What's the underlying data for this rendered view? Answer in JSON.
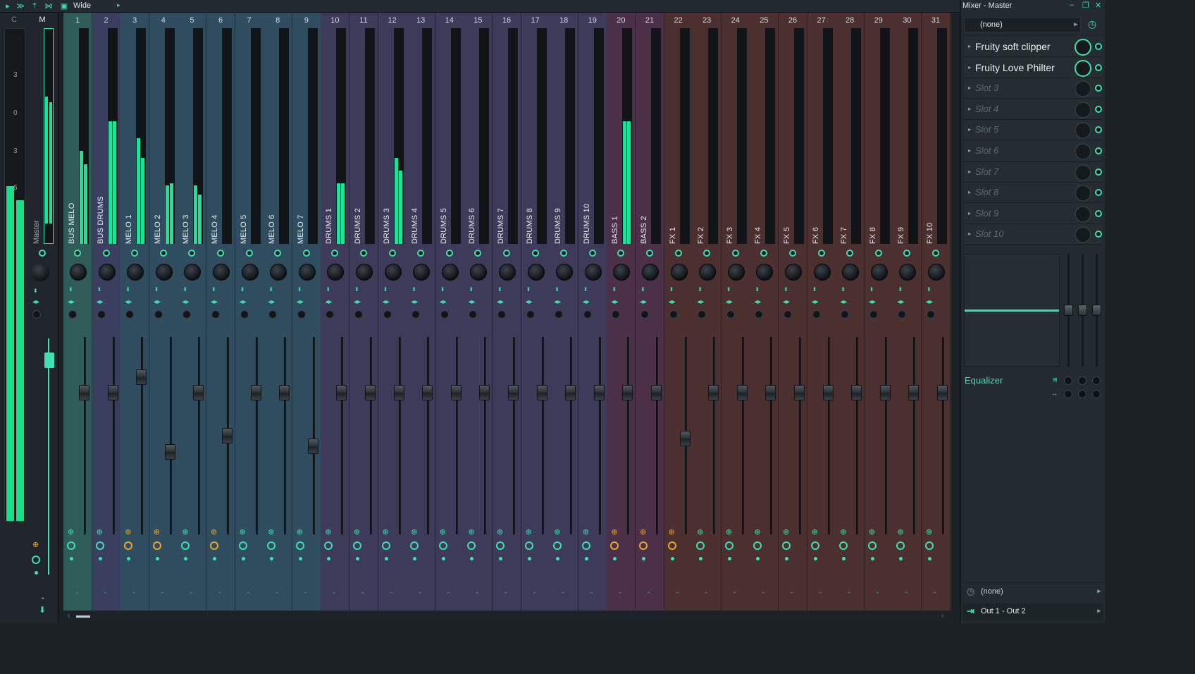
{
  "toolbar": {
    "view_label": "Wide"
  },
  "master": {
    "header_c": "C",
    "header_m": "M",
    "name": "Master",
    "meter_ticks": [
      "3",
      "0",
      "3",
      "6"
    ]
  },
  "channels": [
    {
      "num": "1",
      "name": "BUS MELO",
      "color": "#2f5c58",
      "levelL": 0.43,
      "levelR": 0.37,
      "fader": 0.82,
      "fx": false
    },
    {
      "num": "2",
      "name": "BUS DRUMS",
      "color": "#3a3e5f",
      "levelL": 0.57,
      "levelR": 0.57,
      "fader": 0.82,
      "fx": false
    },
    {
      "num": "3",
      "name": "MELO 1",
      "color": "#2f4d5e",
      "levelL": 0.49,
      "levelR": 0.4,
      "fader": 0.88,
      "fx": true
    },
    {
      "num": "4",
      "name": "MELO 2",
      "color": "#2f4d5e",
      "levelL": 0.27,
      "levelR": 0.28,
      "fader": 0.6,
      "fx": true
    },
    {
      "num": "5",
      "name": "MELO 3",
      "color": "#2f4d5e",
      "levelL": 0.27,
      "levelR": 0.23,
      "fader": 0.82,
      "fx": false
    },
    {
      "num": "6",
      "name": "MELO 4",
      "color": "#2f4d5e",
      "levelL": 0.0,
      "levelR": 0.0,
      "fader": 0.66,
      "fx": true
    },
    {
      "num": "7",
      "name": "MELO 5",
      "color": "#2f4d5e",
      "levelL": 0.0,
      "levelR": 0.0,
      "fader": 0.82,
      "fx": false
    },
    {
      "num": "8",
      "name": "MELO 6",
      "color": "#2f4d5e",
      "levelL": 0.0,
      "levelR": 0.0,
      "fader": 0.82,
      "fx": false
    },
    {
      "num": "9",
      "name": "MELO 7",
      "color": "#2f4d5e",
      "levelL": 0.0,
      "levelR": 0.0,
      "fader": 0.62,
      "fx": false
    },
    {
      "num": "10",
      "name": "DRUMS 1",
      "color": "#3d3a5a",
      "levelL": 0.28,
      "levelR": 0.28,
      "fader": 0.82,
      "fx": false
    },
    {
      "num": "11",
      "name": "DRUMS 2",
      "color": "#3d3a5a",
      "levelL": 0.0,
      "levelR": 0.0,
      "fader": 0.82,
      "fx": false
    },
    {
      "num": "12",
      "name": "DRUMS 3",
      "color": "#3d3a5a",
      "levelL": 0.4,
      "levelR": 0.34,
      "fader": 0.82,
      "fx": false
    },
    {
      "num": "13",
      "name": "DRUMS 4",
      "color": "#3d3a5a",
      "levelL": 0.0,
      "levelR": 0.0,
      "fader": 0.82,
      "fx": false
    },
    {
      "num": "14",
      "name": "DRUMS 5",
      "color": "#3d3a5a",
      "levelL": 0.0,
      "levelR": 0.0,
      "fader": 0.82,
      "fx": false
    },
    {
      "num": "15",
      "name": "DRUMS 6",
      "color": "#3d3a5a",
      "levelL": 0.0,
      "levelR": 0.0,
      "fader": 0.82,
      "fx": false
    },
    {
      "num": "16",
      "name": "DRUMS 7",
      "color": "#3d3a5a",
      "levelL": 0.0,
      "levelR": 0.0,
      "fader": 0.82,
      "fx": false
    },
    {
      "num": "17",
      "name": "DRUMS 8",
      "color": "#3d3a5a",
      "levelL": 0.0,
      "levelR": 0.0,
      "fader": 0.82,
      "fx": false
    },
    {
      "num": "18",
      "name": "DRUMS 9",
      "color": "#3d3a5a",
      "levelL": 0.0,
      "levelR": 0.0,
      "fader": 0.82,
      "fx": false
    },
    {
      "num": "19",
      "name": "DRUMS 10",
      "color": "#3d3a5a",
      "levelL": 0.0,
      "levelR": 0.0,
      "fader": 0.82,
      "fx": false
    },
    {
      "num": "20",
      "name": "BASS 1",
      "color": "#4b3048",
      "levelL": 0.57,
      "levelR": 0.57,
      "fader": 0.82,
      "fx": true
    },
    {
      "num": "21",
      "name": "BASS 2",
      "color": "#4b3048",
      "levelL": 0.0,
      "levelR": 0.0,
      "fader": 0.82,
      "fx": true
    },
    {
      "num": "22",
      "name": "FX 1",
      "color": "#4b302f",
      "levelL": 0.0,
      "levelR": 0.0,
      "fader": 0.65,
      "fx": true
    },
    {
      "num": "23",
      "name": "FX 2",
      "color": "#4b302f",
      "levelL": 0.0,
      "levelR": 0.0,
      "fader": 0.82,
      "fx": false
    },
    {
      "num": "24",
      "name": "FX 3",
      "color": "#4b302f",
      "levelL": 0.0,
      "levelR": 0.0,
      "fader": 0.82,
      "fx": false
    },
    {
      "num": "25",
      "name": "FX 4",
      "color": "#4b302f",
      "levelL": 0.0,
      "levelR": 0.0,
      "fader": 0.82,
      "fx": false
    },
    {
      "num": "26",
      "name": "FX 5",
      "color": "#4b302f",
      "levelL": 0.0,
      "levelR": 0.0,
      "fader": 0.82,
      "fx": false
    },
    {
      "num": "27",
      "name": "FX 6",
      "color": "#4b302f",
      "levelL": 0.0,
      "levelR": 0.0,
      "fader": 0.82,
      "fx": false
    },
    {
      "num": "28",
      "name": "FX 7",
      "color": "#4b302f",
      "levelL": 0.0,
      "levelR": 0.0,
      "fader": 0.82,
      "fx": false
    },
    {
      "num": "29",
      "name": "FX 8",
      "color": "#4b302f",
      "levelL": 0.0,
      "levelR": 0.0,
      "fader": 0.82,
      "fx": false
    },
    {
      "num": "30",
      "name": "FX 9",
      "color": "#4b302f",
      "levelL": 0.0,
      "levelR": 0.0,
      "fader": 0.82,
      "fx": false
    },
    {
      "num": "31",
      "name": "FX 10",
      "color": "#4b302f",
      "levelL": 0.0,
      "levelR": 0.0,
      "fader": 0.82,
      "fx": false
    }
  ],
  "panel": {
    "title": "Mixer - Master",
    "preset": "(none)",
    "slots": [
      {
        "label": "Fruity soft clipper",
        "empty": false
      },
      {
        "label": "Fruity Love Philter",
        "empty": false
      },
      {
        "label": "Slot 3",
        "empty": true
      },
      {
        "label": "Slot 4",
        "empty": true
      },
      {
        "label": "Slot 5",
        "empty": true
      },
      {
        "label": "Slot 6",
        "empty": true
      },
      {
        "label": "Slot 7",
        "empty": true
      },
      {
        "label": "Slot 8",
        "empty": true
      },
      {
        "label": "Slot 9",
        "empty": true
      },
      {
        "label": "Slot 10",
        "empty": true
      }
    ],
    "eq_label": "Equalizer",
    "input_route": "(none)",
    "output_route": "Out 1 - Out 2"
  },
  "accent_color": "#3fe0b0"
}
